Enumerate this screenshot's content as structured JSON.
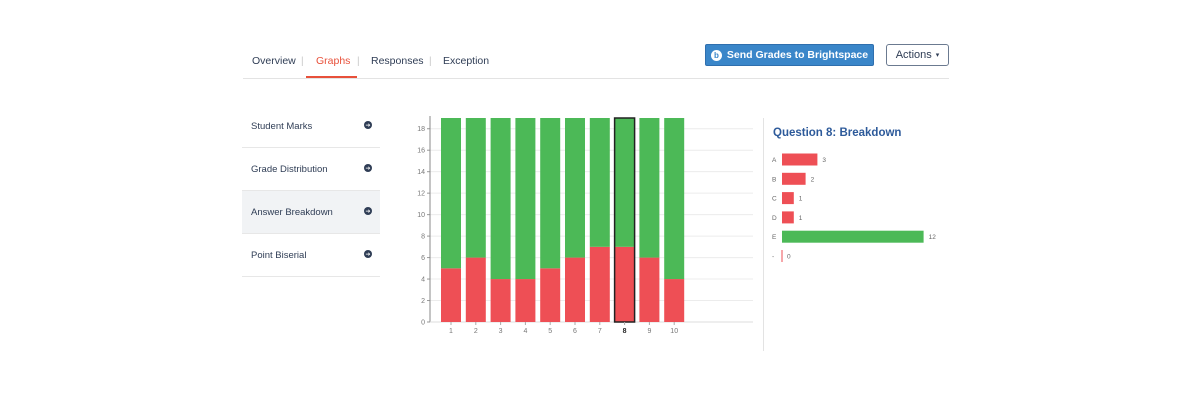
{
  "tabs": [
    {
      "label": "Overview",
      "active": false
    },
    {
      "label": "Graphs",
      "active": true
    },
    {
      "label": "Responses",
      "active": false
    },
    {
      "label": "Exception",
      "active": false
    }
  ],
  "tab_separator": "|",
  "header": {
    "send_button_label": "Send Grades to Brightspace",
    "send_button_icon": "brightspace-b-icon",
    "send_button_icon_glyph": "b",
    "actions_button_label": "Actions",
    "actions_caret": "▾"
  },
  "sidebar": {
    "arrow_glyph": "➔",
    "items": [
      {
        "label": "Student Marks",
        "active": false
      },
      {
        "label": "Grade Distribution",
        "active": false
      },
      {
        "label": "Answer Breakdown",
        "active": true
      },
      {
        "label": "Point Biserial",
        "active": false
      }
    ]
  },
  "colors": {
    "correct": "#4cb957",
    "incorrect": "#ee4f55",
    "accent": "#e8503a",
    "primary": "#3a86c9",
    "title": "#2d5a9a"
  },
  "chart_data": [
    {
      "type": "bar",
      "stacked": true,
      "categories": [
        "1",
        "2",
        "3",
        "4",
        "5",
        "6",
        "7",
        "8",
        "9",
        "10"
      ],
      "series": [
        {
          "color": "#ee4f55",
          "values": [
            5,
            6,
            4,
            4,
            5,
            6,
            7,
            7,
            6,
            4
          ]
        },
        {
          "color": "#4cb957",
          "values": [
            14,
            13,
            15,
            15,
            14,
            13,
            12,
            12,
            13,
            15
          ]
        }
      ],
      "selected_category": "8",
      "ylim": [
        0,
        19
      ],
      "yticks": [
        0,
        2,
        4,
        6,
        8,
        10,
        12,
        14,
        16,
        18
      ],
      "grid": true
    },
    {
      "type": "bar",
      "orientation": "horizontal",
      "title": "Question 8: Breakdown",
      "categories": [
        "A",
        "B",
        "C",
        "D",
        "E",
        "-"
      ],
      "values": [
        3,
        2,
        1,
        1,
        12,
        0
      ],
      "correct_answer": "E"
    }
  ]
}
